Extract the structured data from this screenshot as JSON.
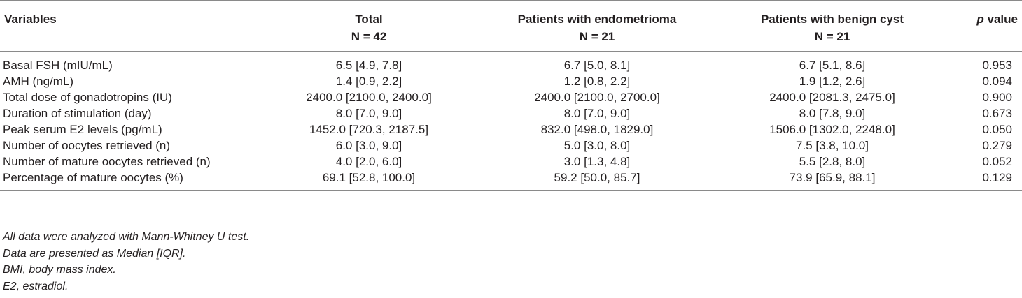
{
  "table": {
    "headers": {
      "variables": "Variables",
      "total": {
        "line1": "Total",
        "line2": "N = 42"
      },
      "endometrioma": {
        "line1": "Patients with endometrioma",
        "line2": "N = 21"
      },
      "benign": {
        "line1": "Patients with benign cyst",
        "line2": "N = 21"
      },
      "pvalue": {
        "italic": "p",
        "rest": " value"
      }
    },
    "rows": [
      {
        "variable": "Basal FSH (mIU/mL)",
        "total": "6.5 [4.9, 7.8]",
        "endometrioma": "6.7 [5.0, 8.1]",
        "benign": "6.7 [5.1, 8.6]",
        "p": "0.953"
      },
      {
        "variable": "AMH (ng/mL)",
        "total": "1.4 [0.9, 2.2]",
        "endometrioma": "1.2 [0.8, 2.2]",
        "benign": "1.9 [1.2, 2.6]",
        "p": "0.094"
      },
      {
        "variable": "Total dose of gonadotropins (IU)",
        "total": "2400.0 [2100.0, 2400.0]",
        "endometrioma": "2400.0 [2100.0, 2700.0]",
        "benign": "2400.0 [2081.3, 2475.0]",
        "p": "0.900"
      },
      {
        "variable": "Duration of stimulation (day)",
        "total": "8.0 [7.0, 9.0]",
        "endometrioma": "8.0 [7.0, 9.0]",
        "benign": "8.0 [7.8, 9.0]",
        "p": "0.673"
      },
      {
        "variable": "Peak serum E2 levels (pg/mL)",
        "total": "1452.0 [720.3, 2187.5]",
        "endometrioma": "832.0 [498.0, 1829.0]",
        "benign": "1506.0 [1302.0, 2248.0]",
        "p": "0.050"
      },
      {
        "variable": "Number of oocytes retrieved (n)",
        "total": "6.0 [3.0, 9.0]",
        "endometrioma": "5.0 [3.0, 8.0]",
        "benign": "7.5 [3.8, 10.0]",
        "p": "0.279"
      },
      {
        "variable": "Number of mature oocytes retrieved (n)",
        "total": "4.0 [2.0, 6.0]",
        "endometrioma": "3.0 [1.3, 4.8]",
        "benign": "5.5 [2.8, 8.0]",
        "p": "0.052"
      },
      {
        "variable": "Percentage of mature oocytes (%)",
        "total": "69.1 [52.8, 100.0]",
        "endometrioma": "59.2 [50.0, 85.7]",
        "benign": "73.9 [65.9, 88.1]",
        "p": "0.129"
      }
    ]
  },
  "notes": [
    "All data were analyzed with Mann-Whitney U test.",
    "Data are presented as Median [IQR].",
    "BMI, body mass index.",
    "E2, estradiol."
  ]
}
